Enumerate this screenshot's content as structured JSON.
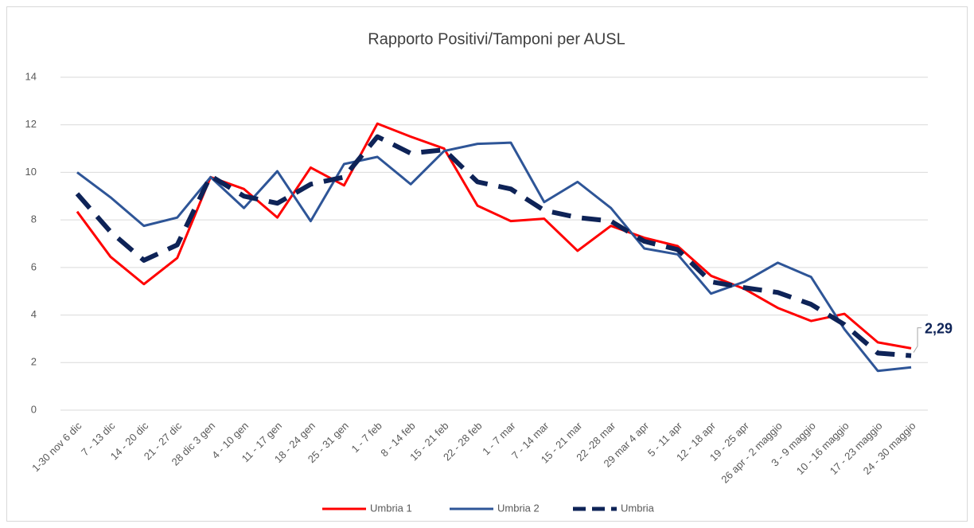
{
  "chart_data": {
    "type": "line",
    "title": "Rapporto Positivi/Tamponi per AUSL",
    "categories": [
      "1-30 nov 6 dic",
      "7 - 13 dic",
      "14 - 20 dic",
      "21 - 27 dic",
      "28 dic 3 gen",
      "4 - 10 gen",
      "11 - 17 gen",
      "18 - 24 gen",
      "25 - 31 gen",
      "1 - 7 feb",
      "8 - 14 feb",
      "15 - 21 feb",
      "22 - 28 feb",
      "1 - 7 mar",
      "7 - 14 mar",
      "15 - 21 mar",
      "22 -28 mar",
      "29 mar 4 apr",
      "5 - 11 apr",
      "12 - 18 apr",
      "19 - 25 apr",
      "26 apr - 2 maggio",
      "3 - 9 maggio",
      "10 - 16 maggio",
      "17 - 23 maggio",
      "24 - 30 maggio"
    ],
    "series": [
      {
        "name": "Umbria 1",
        "color": "#ff0000",
        "dashed": false,
        "values": [
          8.35,
          6.45,
          5.3,
          6.4,
          9.8,
          9.3,
          8.1,
          10.2,
          9.45,
          12.05,
          11.5,
          11.0,
          8.6,
          7.95,
          8.05,
          6.7,
          7.75,
          7.25,
          6.9,
          5.65,
          5.1,
          4.3,
          3.75,
          4.05,
          2.85,
          2.6
        ]
      },
      {
        "name": "Umbria 2",
        "color": "#2e5597",
        "dashed": false,
        "values": [
          10.0,
          8.95,
          7.75,
          8.1,
          9.8,
          8.5,
          10.05,
          7.95,
          10.35,
          10.65,
          9.5,
          10.9,
          11.2,
          11.25,
          8.75,
          9.6,
          8.5,
          6.8,
          6.55,
          4.9,
          5.4,
          6.2,
          5.6,
          3.4,
          1.65,
          1.8
        ]
      },
      {
        "name": "Umbria",
        "color": "#0e2357",
        "dashed": true,
        "values": [
          9.1,
          7.5,
          6.3,
          6.95,
          9.85,
          9.0,
          8.7,
          9.5,
          9.8,
          11.5,
          10.8,
          10.95,
          9.6,
          9.3,
          8.4,
          8.1,
          7.95,
          7.1,
          6.75,
          5.4,
          5.15,
          4.95,
          4.45,
          3.6,
          2.4,
          2.29
        ],
        "value_labels": [
          null,
          null,
          null,
          null,
          null,
          null,
          null,
          null,
          null,
          null,
          null,
          null,
          null,
          null,
          null,
          null,
          null,
          null,
          null,
          null,
          null,
          null,
          null,
          null,
          null,
          "2,29"
        ]
      }
    ],
    "ylim": [
      0,
      14
    ],
    "yticks": [
      0,
      2,
      4,
      6,
      8,
      10,
      12,
      14
    ],
    "grid": true,
    "legend": "bottom"
  }
}
